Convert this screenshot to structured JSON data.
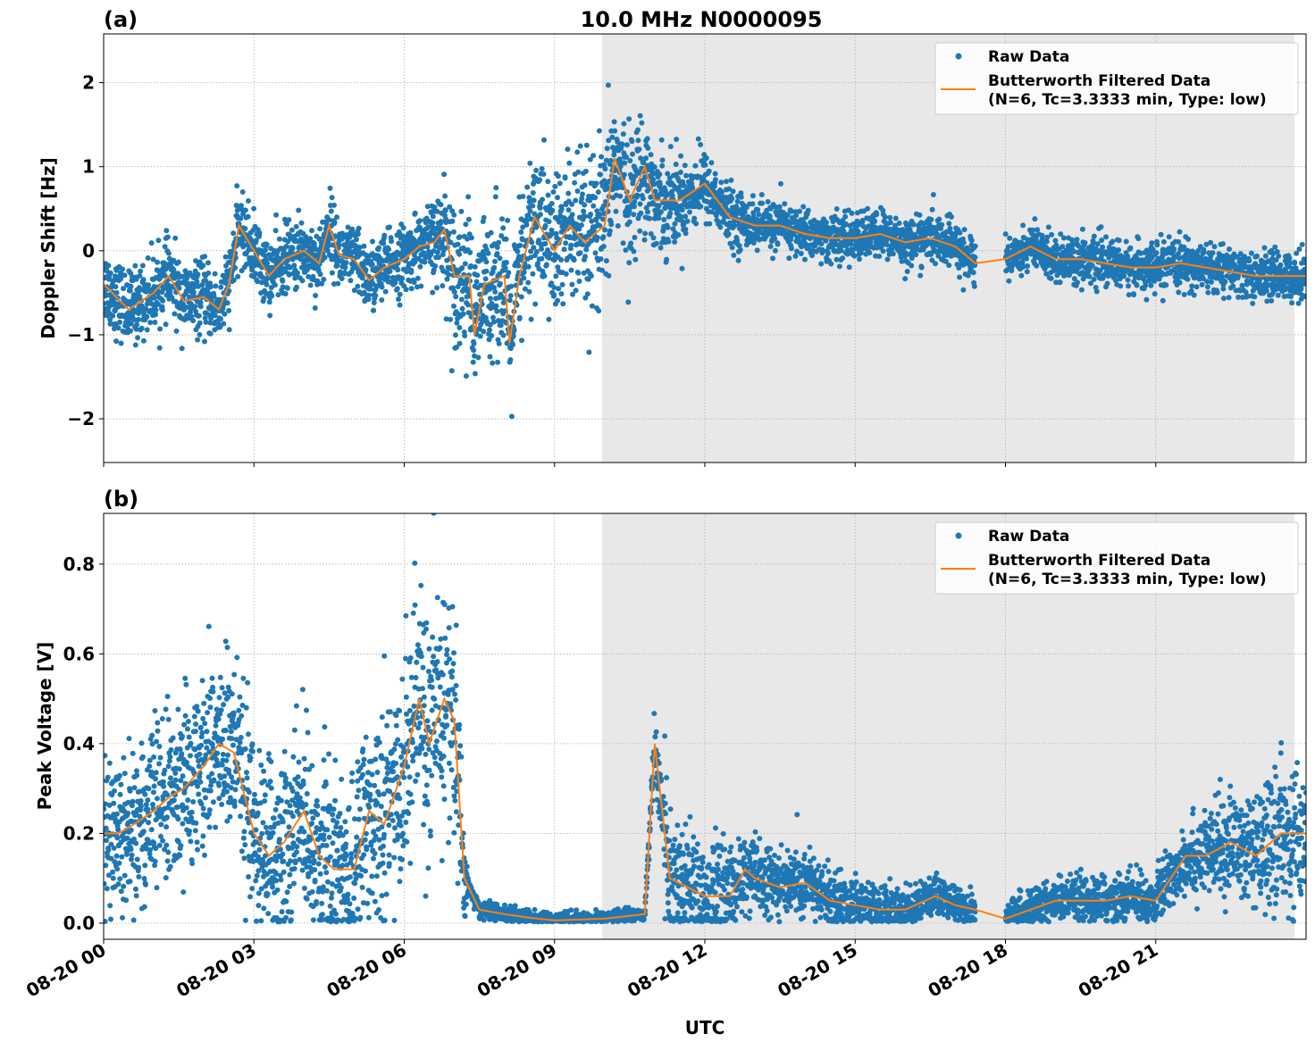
{
  "title": "10.0 MHz N0000095",
  "xlabel": "UTC",
  "x_tick_labels": [
    "08-20 00",
    "08-20 03",
    "08-20 06",
    "08-20 09",
    "08-20 12",
    "08-20 15",
    "08-20 18",
    "08-20 21"
  ],
  "x_ticks_hours": [
    0,
    3,
    6,
    9,
    12,
    15,
    18,
    21
  ],
  "xlim_hours": [
    0,
    24
  ],
  "shaded_interval_hours": [
    9.95,
    23.77
  ],
  "data_gap_hours": [
    17.4,
    18.0
  ],
  "colors": {
    "raw": "#1f77b4",
    "filtered": "#ff7f0e",
    "shade": "#e8e8e8",
    "grid": "#b0b0b0"
  },
  "legend": {
    "raw": "Raw Data",
    "filtered_line1": "Butterworth Filtered Data",
    "filtered_line2": "(N=6, Tc=3.3333 min, Type: low)",
    "placement": "upper right"
  },
  "chart_data": [
    {
      "type": "scatter+line",
      "panel_label": "(a)",
      "ylabel": "Doppler Shift [Hz]",
      "ylim": [
        -2.52,
        2.58
      ],
      "y_ticks": [
        -2,
        -1,
        0,
        1,
        2
      ],
      "y_tick_labels": [
        "−2",
        "−1",
        "0",
        "1",
        "2"
      ],
      "grid": true,
      "filtered": {
        "x": [
          0,
          0.5,
          1,
          1.3,
          1.6,
          2,
          2.3,
          2.5,
          2.7,
          3,
          3.3,
          3.6,
          4,
          4.3,
          4.5,
          4.7,
          5,
          5.3,
          5.6,
          6,
          6.3,
          6.6,
          6.8,
          7,
          7.3,
          7.4,
          7.6,
          8,
          8.1,
          8.3,
          8.6,
          9,
          9.3,
          9.6,
          10,
          10.2,
          10.5,
          10.8,
          11,
          11.5,
          12,
          12.5,
          13,
          13.5,
          14,
          14.5,
          15,
          15.5,
          16,
          16.5,
          17,
          17.4,
          18,
          18.5,
          19,
          19.5,
          20,
          20.5,
          21,
          21.5,
          22,
          22.5,
          23,
          23.5,
          24
        ],
        "y": [
          -0.4,
          -0.7,
          -0.5,
          -0.3,
          -0.6,
          -0.55,
          -0.7,
          -0.4,
          0.3,
          0.0,
          -0.3,
          -0.1,
          0.0,
          -0.15,
          0.3,
          -0.05,
          -0.1,
          -0.35,
          -0.2,
          -0.1,
          0.05,
          0.1,
          0.25,
          -0.3,
          -0.3,
          -1.0,
          -0.4,
          -0.3,
          -1.1,
          -0.3,
          0.4,
          0.0,
          0.3,
          0.1,
          0.3,
          1.1,
          0.6,
          1.0,
          0.6,
          0.6,
          0.8,
          0.4,
          0.3,
          0.3,
          0.2,
          0.15,
          0.15,
          0.2,
          0.1,
          0.15,
          0.05,
          -0.15,
          -0.1,
          0.05,
          -0.1,
          -0.1,
          -0.15,
          -0.2,
          -0.2,
          -0.15,
          -0.2,
          -0.25,
          -0.3,
          -0.3,
          -0.3
        ]
      },
      "raw_spread": {
        "x": [
          0,
          2.5,
          6.5,
          7,
          9,
          10,
          11,
          12,
          13,
          17.4,
          18,
          24
        ],
        "sd": [
          0.22,
          0.2,
          0.2,
          0.4,
          0.45,
          0.45,
          0.3,
          0.2,
          0.14,
          0.14,
          0.13,
          0.14
        ]
      }
    },
    {
      "type": "scatter+line",
      "panel_label": "(b)",
      "ylabel": "Peak Voltage [V]",
      "ylim": [
        -0.036,
        0.913
      ],
      "y_ticks": [
        0,
        0.2,
        0.4,
        0.6,
        0.8
      ],
      "y_tick_labels": [
        "0.0",
        "0.2",
        "0.4",
        "0.6",
        "0.8"
      ],
      "grid": true,
      "filtered": {
        "x": [
          0,
          0.3,
          0.6,
          1,
          1.3,
          1.6,
          2,
          2.3,
          2.6,
          3,
          3.3,
          3.6,
          4,
          4.3,
          4.6,
          5,
          5.3,
          5.6,
          6,
          6.3,
          6.5,
          6.8,
          7,
          7.2,
          7.5,
          8,
          8.5,
          9,
          10,
          10.8,
          11,
          11.1,
          11.3,
          12,
          12.5,
          12.8,
          13,
          13.5,
          14,
          14.5,
          15,
          15.5,
          16,
          16.6,
          17,
          17.4,
          18,
          18.5,
          19,
          19.5,
          20,
          20.5,
          21,
          21.3,
          21.6,
          22,
          22.5,
          23,
          23.5,
          24
        ],
        "y": [
          0.2,
          0.2,
          0.22,
          0.25,
          0.28,
          0.3,
          0.35,
          0.4,
          0.38,
          0.2,
          0.15,
          0.18,
          0.25,
          0.15,
          0.12,
          0.12,
          0.25,
          0.22,
          0.35,
          0.5,
          0.4,
          0.5,
          0.45,
          0.1,
          0.03,
          0.02,
          0.012,
          0.006,
          0.01,
          0.02,
          0.4,
          0.3,
          0.1,
          0.06,
          0.06,
          0.12,
          0.1,
          0.08,
          0.09,
          0.05,
          0.04,
          0.03,
          0.03,
          0.06,
          0.04,
          0.03,
          0.01,
          0.03,
          0.05,
          0.05,
          0.05,
          0.06,
          0.05,
          0.1,
          0.15,
          0.15,
          0.18,
          0.15,
          0.2,
          0.2
        ]
      },
      "raw_spread": {
        "x": [
          0,
          3,
          7,
          7.3,
          10.8,
          11.3,
          13,
          17.4,
          18,
          21,
          24
        ],
        "sd": [
          0.09,
          0.1,
          0.14,
          0.01,
          0.008,
          0.08,
          0.04,
          0.02,
          0.02,
          0.03,
          0.08
        ]
      }
    }
  ]
}
